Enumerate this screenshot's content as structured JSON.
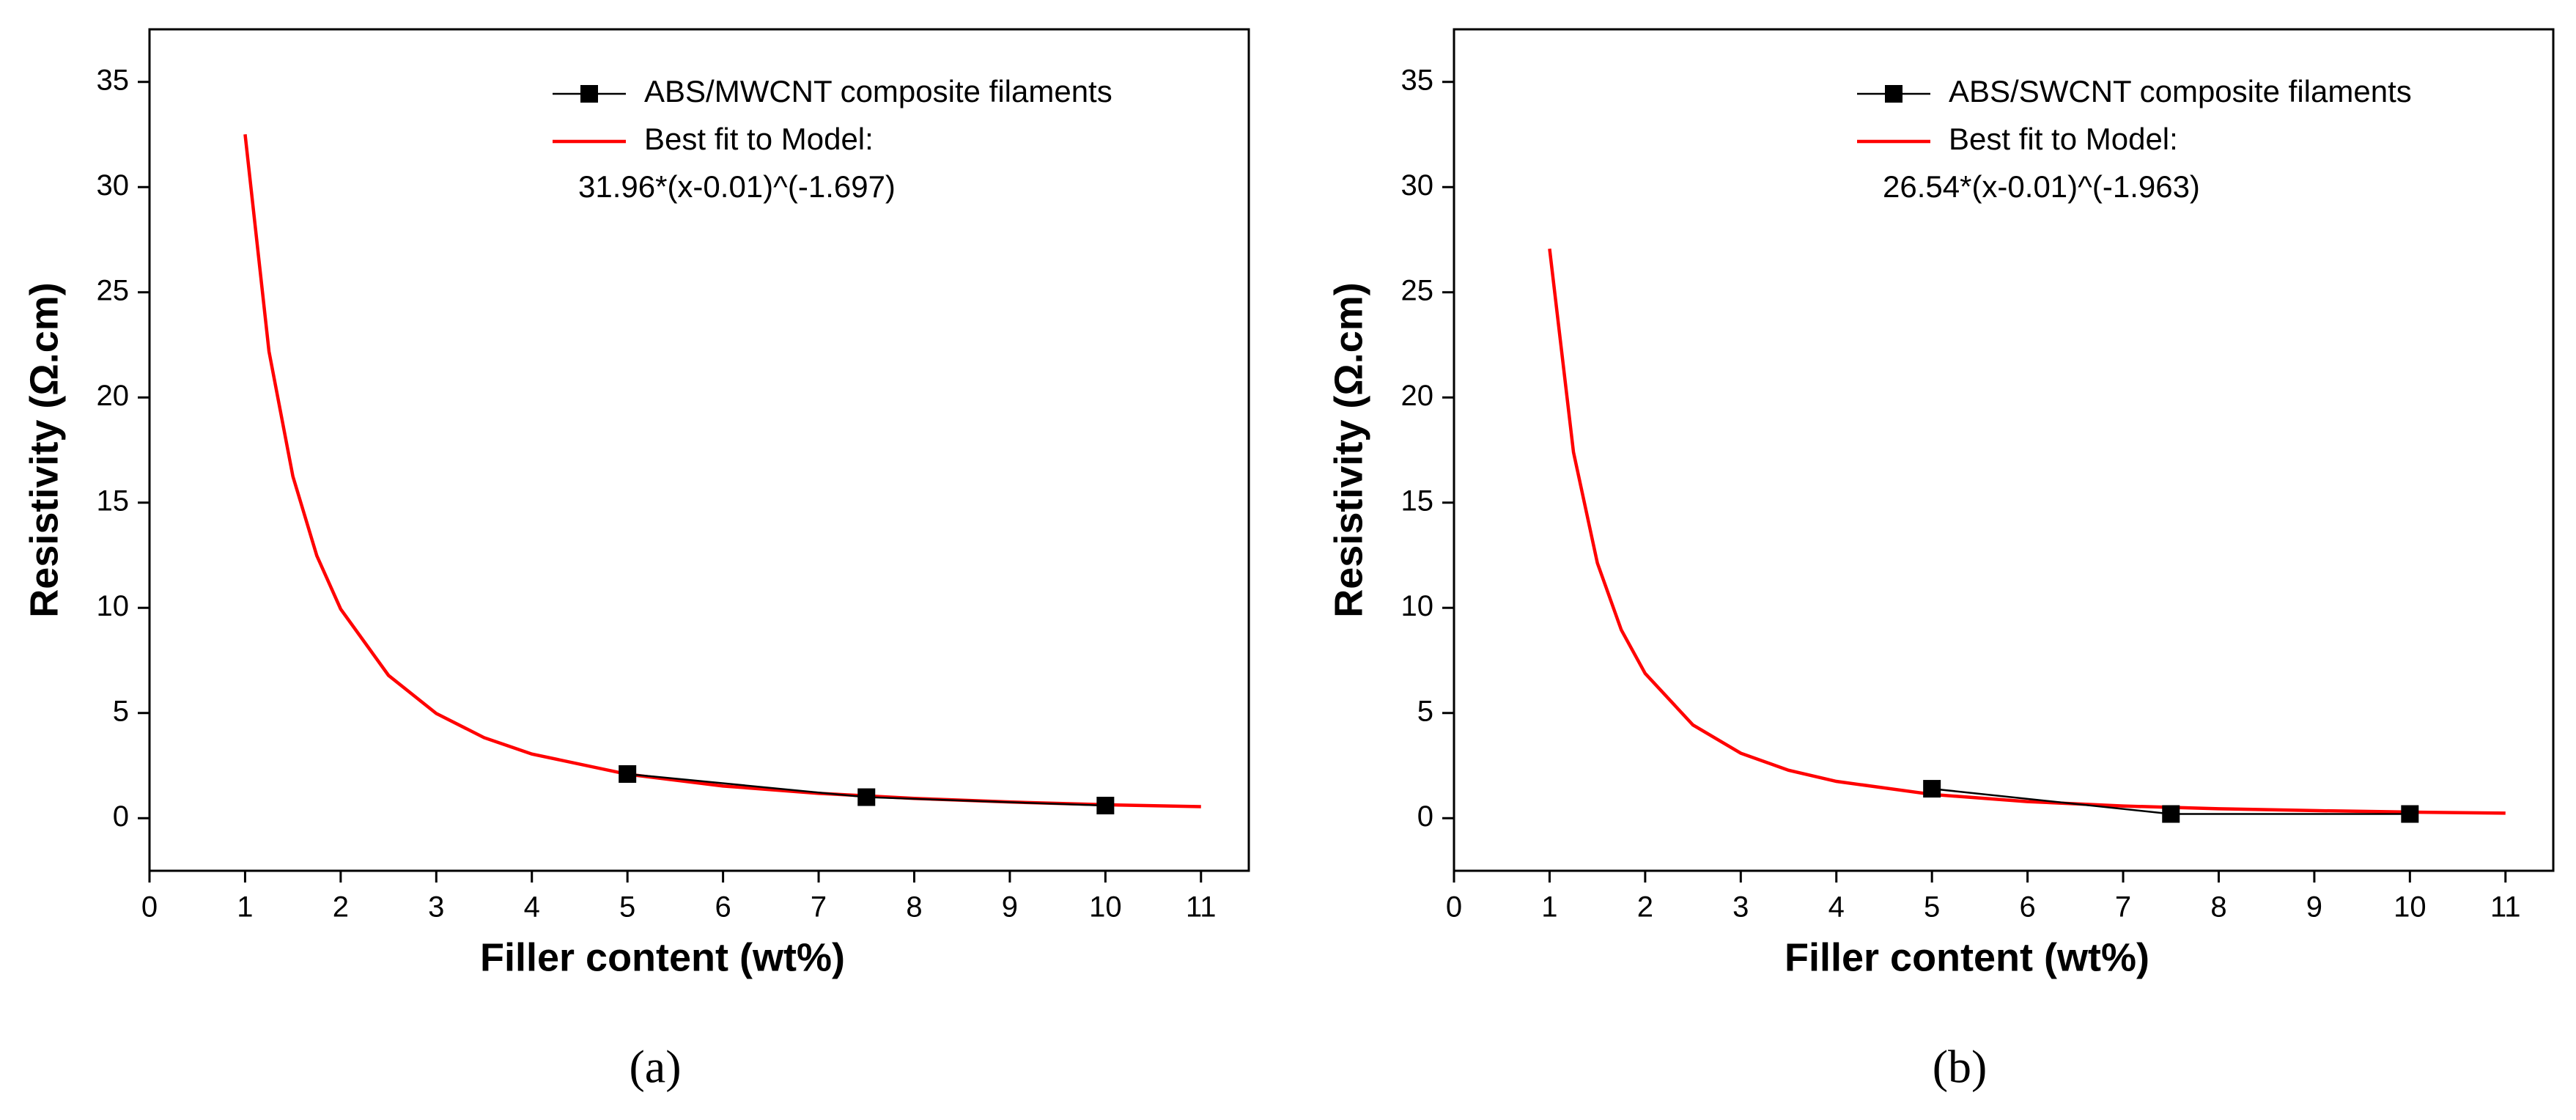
{
  "chart_data": [
    {
      "type": "line",
      "caption": "(a)",
      "xlabel": "Filler content (wt%)",
      "ylabel": "Resistivity (Ω.cm)",
      "xlim": [
        0,
        11.5
      ],
      "ylim": [
        -2.5,
        37.5
      ],
      "xticks": [
        0,
        1,
        2,
        3,
        4,
        5,
        6,
        7,
        8,
        9,
        10,
        11
      ],
      "yticks": [
        0,
        5,
        10,
        15,
        20,
        25,
        30,
        35
      ],
      "annotation": "31.96*(x-0.01)^(-1.697)",
      "series": [
        {
          "name": "ABS/MWCNT composite filaments",
          "color": "#000000",
          "marker": "square",
          "x": [
            5,
            7.5,
            10
          ],
          "values": [
            2.1,
            1.0,
            0.6
          ]
        },
        {
          "name": "Best fit to Model:",
          "color": "#ff0000",
          "x": [
            1,
            1.25,
            1.5,
            1.75,
            2,
            2.5,
            3,
            3.5,
            4,
            5,
            6,
            7,
            8,
            9,
            10,
            11
          ],
          "values": [
            32.51,
            22.19,
            16.25,
            12.48,
            9.94,
            6.79,
            4.98,
            3.83,
            3.05,
            2.09,
            1.53,
            1.18,
            0.94,
            0.77,
            0.64,
            0.55
          ]
        }
      ]
    },
    {
      "type": "line",
      "caption": "(b)",
      "xlabel": "Filler content (wt%)",
      "ylabel": "Resistivity (Ω.cm)",
      "xlim": [
        0,
        11.5
      ],
      "ylim": [
        -2.5,
        37.5
      ],
      "xticks": [
        0,
        1,
        2,
        3,
        4,
        5,
        6,
        7,
        8,
        9,
        10,
        11
      ],
      "yticks": [
        0,
        5,
        10,
        15,
        20,
        25,
        30,
        35
      ],
      "annotation": "26.54*(x-0.01)^(-1.963)",
      "series": [
        {
          "name": "ABS/SWCNT composite filaments",
          "color": "#000000",
          "marker": "square",
          "x": [
            5,
            7.5,
            10
          ],
          "values": [
            1.4,
            0.2,
            0.2
          ]
        },
        {
          "name": "Best fit to Model:",
          "color": "#ff0000",
          "x": [
            1,
            1.25,
            1.5,
            1.75,
            2,
            2.5,
            3,
            3.5,
            4,
            5,
            6,
            7,
            8,
            9,
            10,
            11
          ],
          "values": [
            27.07,
            17.4,
            12.13,
            8.95,
            6.88,
            4.43,
            3.09,
            2.28,
            1.75,
            1.13,
            0.79,
            0.58,
            0.45,
            0.36,
            0.29,
            0.24
          ]
        }
      ]
    }
  ]
}
